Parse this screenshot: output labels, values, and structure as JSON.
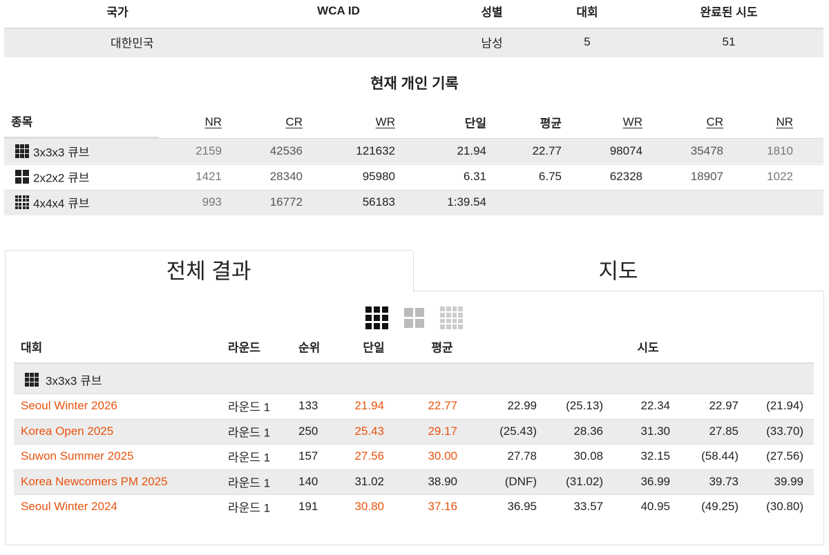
{
  "profile": {
    "headers": [
      "국가",
      "WCA ID",
      "성별",
      "대회",
      "완료된 시도"
    ],
    "country": "대한민국",
    "gender": "남성",
    "competitions": "5",
    "completed_solves": "51"
  },
  "records": {
    "title": "현재 개인 기록",
    "headers": [
      "종목",
      "NR",
      "CR",
      "WR",
      "단일",
      "평균",
      "WR",
      "CR",
      "NR"
    ],
    "rows": [
      [
        "3x3x3 큐브",
        "2159",
        "42536",
        "121632",
        "21.94",
        "22.77",
        "98074",
        "35478",
        "1810"
      ],
      [
        "2x2x2 큐브",
        "1421",
        "28340",
        "95980",
        "6.31",
        "6.75",
        "62328",
        "18907",
        "1022"
      ],
      [
        "4x4x4 큐브",
        "993",
        "16772",
        "56183",
        "1:39.54"
      ]
    ]
  },
  "tabs": [
    "전체 결과",
    "지도"
  ],
  "results": {
    "headers": [
      "대회",
      "라운드",
      "순위",
      "단일",
      "평균",
      "시도"
    ],
    "event": "3x3x3 큐브",
    "highlight_color": "#e8530e",
    "rows": [
      {
        "competition": "Seoul Winter 2026",
        "round": "라운드 1",
        "rank": "133",
        "single": "21.94",
        "average": "22.77",
        "highlight": true,
        "solves": [
          "22.99",
          "(25.13)",
          "22.34",
          "22.97",
          "(21.94)"
        ]
      },
      {
        "competition": "Korea Open 2025",
        "round": "라운드 1",
        "rank": "250",
        "single": "25.43",
        "average": "29.17",
        "highlight": true,
        "solves": [
          "(25.43)",
          "28.36",
          "31.30",
          "27.85",
          "(33.70)"
        ]
      },
      {
        "competition": "Suwon Summer 2025",
        "round": "라운드 1",
        "rank": "157",
        "single": "27.56",
        "average": "30.00",
        "highlight": true,
        "solves": [
          "27.78",
          "30.08",
          "32.15",
          "(58.44)",
          "(27.56)"
        ]
      },
      {
        "competition": "Korea Newcomers PM 2025",
        "round": "라운드 1",
        "rank": "140",
        "single": "31.02",
        "average": "38.90",
        "highlight": false,
        "solves": [
          "(DNF)",
          "(31.02)",
          "36.99",
          "39.73",
          "39.99"
        ]
      },
      {
        "competition": "Seoul Winter 2024",
        "round": "라운드 1",
        "rank": "191",
        "single": "30.80",
        "average": "37.16",
        "highlight": true,
        "solves": [
          "36.95",
          "33.57",
          "40.95",
          "(49.25)",
          "(30.80)"
        ]
      }
    ]
  }
}
